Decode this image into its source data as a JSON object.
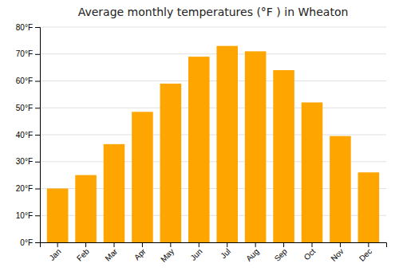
{
  "chart_data": {
    "type": "bar",
    "title": "Average monthly temperatures (°F ) in Wheaton",
    "categories": [
      "Jan",
      "Feb",
      "Mar",
      "Apr",
      "May",
      "Jun",
      "Jul",
      "Aug",
      "Sep",
      "Oct",
      "Nov",
      "Dec"
    ],
    "values": [
      20,
      25,
      36.5,
      48.5,
      59,
      69,
      73,
      71,
      64,
      52,
      39.5,
      26
    ],
    "color": "#FFA500",
    "ylim": [
      0,
      80
    ],
    "yticks": [
      {
        "value": 0,
        "label": "0°F"
      },
      {
        "value": 10,
        "label": "10°F"
      },
      {
        "value": 20,
        "label": "20°F"
      },
      {
        "value": 30,
        "label": "30°F"
      },
      {
        "value": 40,
        "label": "40°F"
      },
      {
        "value": 50,
        "label": "50°F"
      },
      {
        "value": 60,
        "label": "60°F"
      },
      {
        "value": 70,
        "label": "70°F"
      },
      {
        "value": 80,
        "label": "80°F"
      }
    ],
    "grid": true
  }
}
